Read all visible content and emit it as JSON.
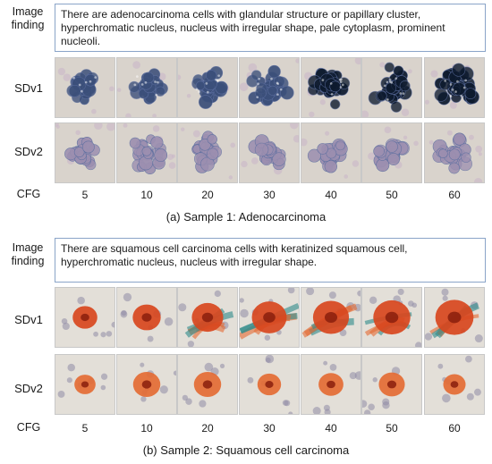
{
  "sample1": {
    "finding_label": "Image finding",
    "finding_text": "There are adenocarcinoma cells with glandular structure or papillary cluster, hyperchromatic nucleus, nucleus with irregular shape, pale cytoplasm, prominent nucleoli.",
    "row1_label": "SDv1",
    "row2_label": "SDv2",
    "cfg_label": "CFG",
    "cfg_values": [
      "5",
      "10",
      "20",
      "30",
      "40",
      "50",
      "60"
    ],
    "caption": "(a) Sample 1: Adenocarcinoma"
  },
  "sample2": {
    "finding_label": "Image finding",
    "finding_text": "There are squamous cell carcinoma cells with keratinized squamous cell, hyperchromatic nucleus, nucleus with irregular shape.",
    "row1_label": "SDv1",
    "row2_label": "SDv2",
    "cfg_label": "CFG",
    "cfg_values": [
      "5",
      "10",
      "20",
      "30",
      "40",
      "50",
      "60"
    ],
    "caption": "(b) Sample 2: Squamous cell carcinoma"
  },
  "colors": {
    "adeno_bg": "#d9d3cc",
    "adeno_cell": "#3b4f7a",
    "adeno_dark": "#0d1a2e",
    "adeno_pale": "#9c8fb0",
    "squam_bg": "#e3dfd8",
    "squam_cell": "#d8461e",
    "squam_core": "#8a1f0d",
    "squam_orange": "#e46b34",
    "teal": "#2d8a8a"
  },
  "grid": {
    "adeno_v1": [
      0.35,
      0.5,
      0.62,
      0.75,
      0.85,
      0.95,
      1.0
    ],
    "adeno_v2": [
      0.35,
      0.45,
      0.55,
      0.6,
      0.55,
      0.5,
      0.45
    ],
    "squam_v1": [
      0.4,
      0.55,
      0.7,
      0.85,
      0.9,
      0.95,
      1.0
    ],
    "squam_v2": [
      0.3,
      0.55,
      0.55,
      0.4,
      0.45,
      0.5,
      0.35
    ]
  }
}
